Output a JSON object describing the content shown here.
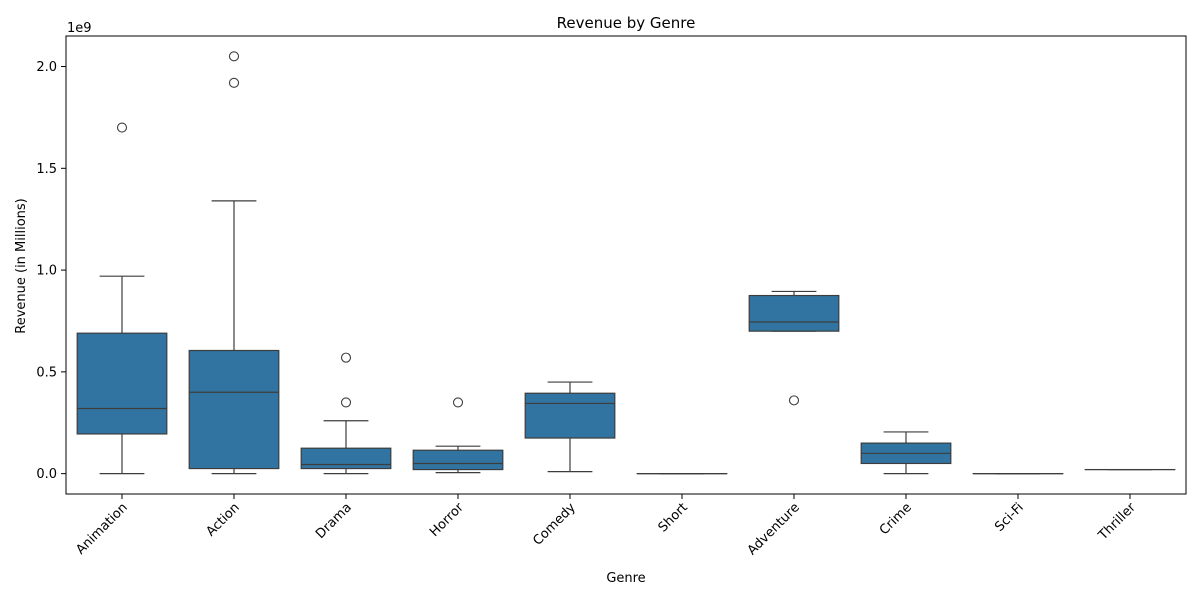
{
  "chart_data": {
    "type": "box",
    "title": "Revenue by Genre",
    "xlabel": "Genre",
    "ylabel": "Revenue (in Millions)",
    "y_offset_label": "1e9",
    "y_scale": 1000000000,
    "ylim": [
      -0.1,
      2.15
    ],
    "yticks": [
      0.0,
      0.5,
      1.0,
      1.5,
      2.0
    ],
    "ytick_labels": [
      "0.0",
      "0.5",
      "1.0",
      "1.5",
      "2.0"
    ],
    "box_color": "#3274a1",
    "line_color": "#3d3d3d",
    "grid": false,
    "categories": [
      "Animation",
      "Action",
      "Drama",
      "Horror",
      "Comedy",
      "Short",
      "Adventure",
      "Crime",
      "Sci-Fi",
      "Thriller"
    ],
    "boxes": [
      {
        "category": "Animation",
        "whisker_low": 0.0,
        "q1": 0.195,
        "median": 0.32,
        "q3": 0.69,
        "whisker_high": 0.97,
        "outliers": [
          1.7
        ]
      },
      {
        "category": "Action",
        "whisker_low": 0.0,
        "q1": 0.025,
        "median": 0.4,
        "q3": 0.605,
        "whisker_high": 1.34,
        "outliers": [
          1.92,
          2.05
        ]
      },
      {
        "category": "Drama",
        "whisker_low": 0.0,
        "q1": 0.025,
        "median": 0.045,
        "q3": 0.125,
        "whisker_high": 0.26,
        "outliers": [
          0.35,
          0.57
        ]
      },
      {
        "category": "Horror",
        "whisker_low": 0.005,
        "q1": 0.02,
        "median": 0.05,
        "q3": 0.115,
        "whisker_high": 0.135,
        "outliers": [
          0.35
        ]
      },
      {
        "category": "Comedy",
        "whisker_low": 0.01,
        "q1": 0.175,
        "median": 0.345,
        "q3": 0.395,
        "whisker_high": 0.45,
        "outliers": []
      },
      {
        "category": "Short",
        "whisker_low": 0.0,
        "q1": 0.0,
        "median": 0.0,
        "q3": 0.0,
        "whisker_high": 0.0,
        "outliers": []
      },
      {
        "category": "Adventure",
        "whisker_low": 0.7,
        "q1": 0.7,
        "median": 0.745,
        "q3": 0.875,
        "whisker_high": 0.895,
        "outliers": [
          0.36
        ]
      },
      {
        "category": "Crime",
        "whisker_low": 0.0,
        "q1": 0.05,
        "median": 0.1,
        "q3": 0.15,
        "whisker_high": 0.205,
        "outliers": []
      },
      {
        "category": "Sci-Fi",
        "whisker_low": 0.0,
        "q1": 0.0,
        "median": 0.0,
        "q3": 0.0,
        "whisker_high": 0.0,
        "outliers": []
      },
      {
        "category": "Thriller",
        "whisker_low": 0.02,
        "q1": 0.02,
        "median": 0.02,
        "q3": 0.02,
        "whisker_high": 0.02,
        "outliers": []
      }
    ]
  }
}
